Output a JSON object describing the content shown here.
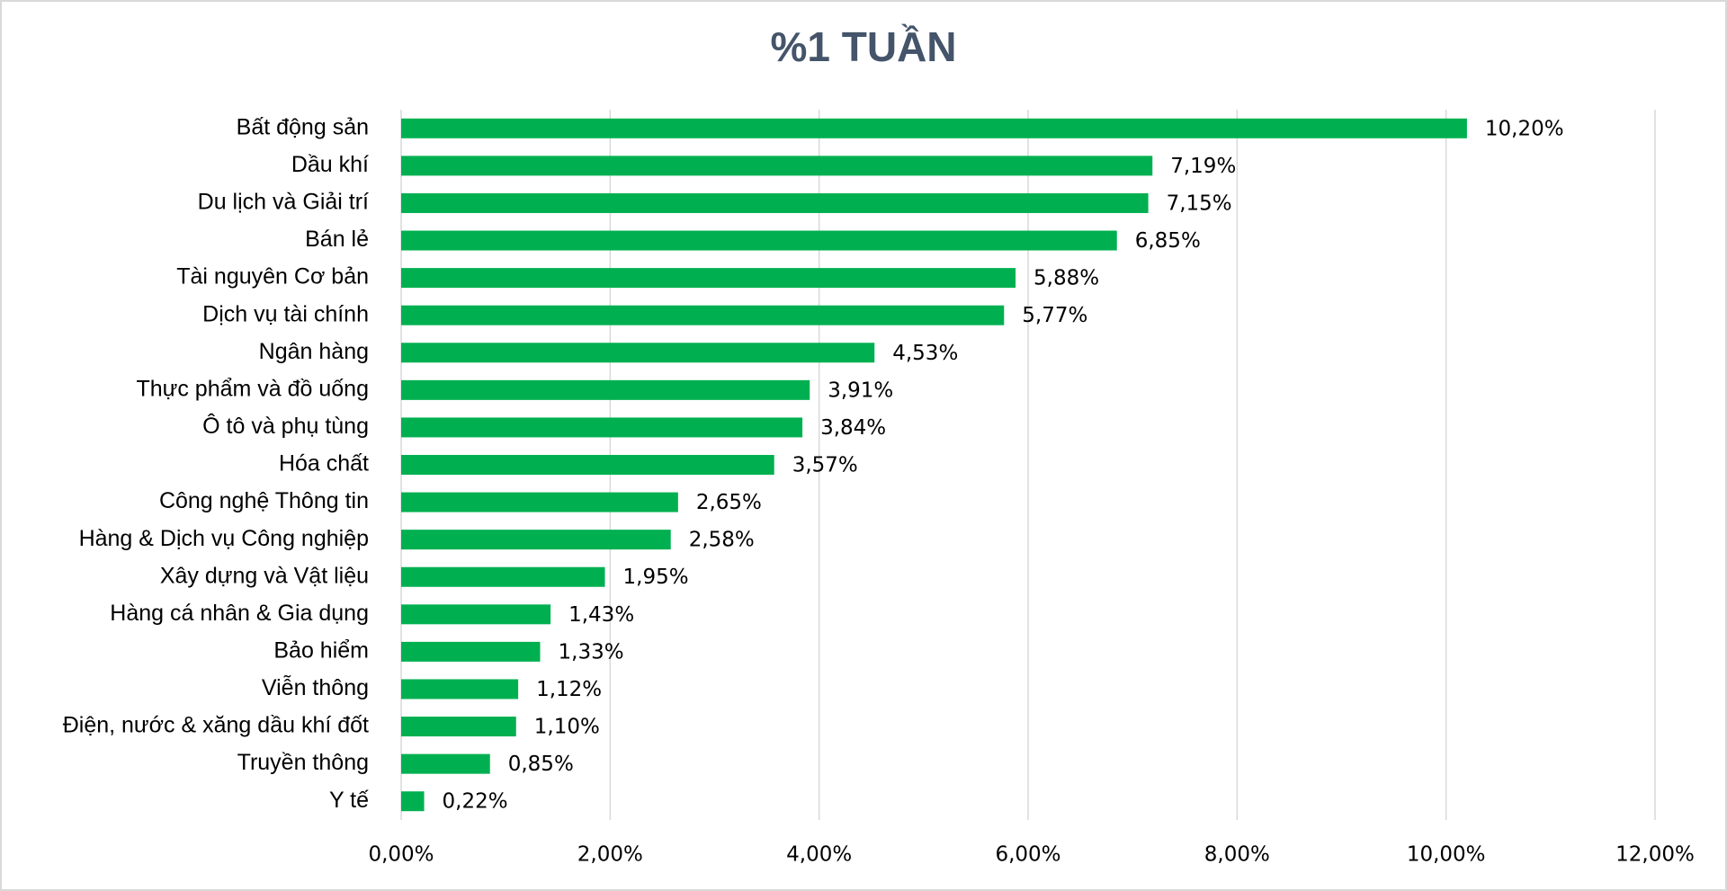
{
  "chart_data": {
    "type": "barh",
    "title": "%1 TUẦN",
    "categories": [
      "Bất động sản",
      "Dầu khí",
      "Du lịch và Giải trí",
      "Bán lẻ",
      "Tài nguyên Cơ bản",
      "Dịch vụ tài chính",
      "Ngân hàng",
      "Thực phẩm và đồ uống",
      "Ô tô và phụ tùng",
      "Hóa chất",
      "Công nghệ Thông tin",
      "Hàng & Dịch vụ Công nghiệp",
      "Xây dựng và Vật liệu",
      "Hàng cá nhân & Gia dụng",
      "Bảo hiểm",
      "Viễn thông",
      "Điện, nước & xăng dầu khí đốt",
      "Truyền thông",
      "Y tế"
    ],
    "values": [
      10.2,
      7.19,
      7.15,
      6.85,
      5.88,
      5.77,
      4.53,
      3.91,
      3.84,
      3.57,
      2.65,
      2.58,
      1.95,
      1.43,
      1.33,
      1.12,
      1.1,
      0.85,
      0.22
    ],
    "value_labels": [
      "10,20%",
      "7,19%",
      "7,15%",
      "6,85%",
      "5,88%",
      "5,77%",
      "4,53%",
      "3,91%",
      "3,84%",
      "3,57%",
      "2,65%",
      "2,58%",
      "1,95%",
      "1,43%",
      "1,33%",
      "1,12%",
      "1,10%",
      "0,85%",
      "0,22%"
    ],
    "color": "#00b050",
    "xlim": [
      0,
      12
    ],
    "xticks": [
      {
        "value": 0,
        "label": "0,00%"
      },
      {
        "value": 2,
        "label": "2,00%"
      },
      {
        "value": 4,
        "label": "4,00%"
      },
      {
        "value": 6,
        "label": "6,00%"
      },
      {
        "value": 8,
        "label": "8,00%"
      },
      {
        "value": 10,
        "label": "10,00%"
      },
      {
        "value": 12,
        "label": "12,00%"
      }
    ],
    "grid": true
  }
}
